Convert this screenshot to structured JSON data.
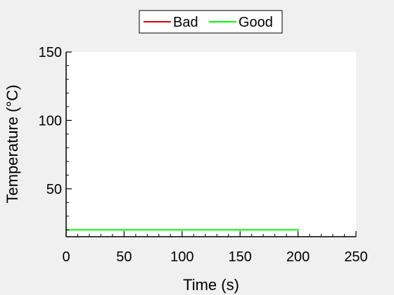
{
  "chart_data": {
    "type": "line",
    "xlabel": "Time (s)",
    "ylabel": "Temperature (°C)",
    "xlim": [
      0,
      250
    ],
    "ylim": [
      15,
      150
    ],
    "xticks": [
      0,
      50,
      100,
      150,
      200,
      250
    ],
    "yticks": [
      50,
      100,
      150
    ],
    "grid": false,
    "legend_placement": "top-center",
    "series": [
      {
        "name": "Bad",
        "color": "#e00000",
        "x": [],
        "y": []
      },
      {
        "name": "Good",
        "color": "#00ff00",
        "x": [
          0,
          201
        ],
        "y": [
          20,
          20
        ]
      }
    ]
  }
}
